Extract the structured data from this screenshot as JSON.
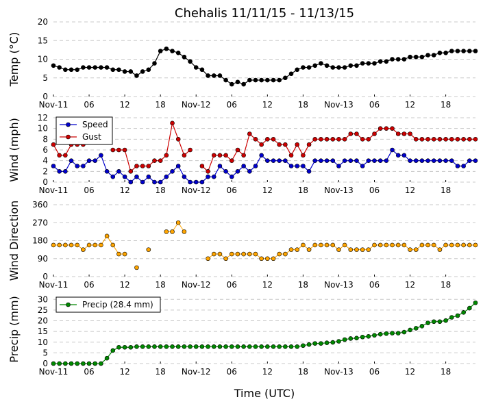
{
  "title": "Chehalis 11/11/15 - 11/13/15",
  "xlabel": "Time (UTC)",
  "x_ticks": [
    "Nov-11",
    "06",
    "12",
    "18",
    "Nov-12",
    "06",
    "12",
    "18",
    "Nov-13",
    "06",
    "12",
    "18"
  ],
  "chart_data": [
    {
      "type": "line",
      "ylabel": "Temp (°C)",
      "ylim": [
        0,
        20
      ],
      "yticks": [
        0,
        5,
        10,
        15,
        20
      ],
      "x_hours_from": "Nov-11 00 UTC",
      "grid": "horizontal dashed",
      "series": [
        {
          "color": "#000000",
          "x": [
            0,
            1,
            2,
            3,
            4,
            5,
            6,
            7,
            8,
            9,
            10,
            11,
            12,
            13,
            14,
            15,
            16,
            17,
            18,
            19,
            20,
            21,
            22,
            23,
            24,
            25,
            26,
            27,
            28,
            29,
            30,
            31,
            32,
            33,
            34,
            35,
            36,
            37,
            38,
            39,
            40,
            41,
            42,
            43,
            44,
            45,
            46,
            47,
            48,
            49,
            50,
            51,
            52,
            53,
            54,
            55,
            56,
            57,
            58,
            59,
            60,
            61,
            62,
            63,
            64,
            65,
            66,
            67,
            68,
            69,
            70,
            71
          ],
          "values": [
            8.3,
            7.8,
            7.2,
            7.2,
            7.2,
            7.8,
            7.8,
            7.8,
            7.8,
            7.8,
            7.2,
            7.2,
            6.7,
            6.7,
            5.6,
            6.7,
            7.2,
            8.9,
            12.2,
            12.8,
            12.2,
            11.7,
            10.6,
            9.4,
            7.8,
            7.2,
            5.6,
            5.6,
            5.6,
            4.4,
            3.3,
            3.9,
            3.3,
            4.4,
            4.4,
            4.4,
            4.4,
            4.4,
            4.4,
            5.0,
            6.1,
            7.2,
            7.8,
            7.8,
            8.3,
            8.9,
            8.3,
            7.8,
            7.8,
            7.8,
            8.3,
            8.3,
            8.9,
            8.9,
            8.9,
            9.4,
            9.4,
            10.0,
            10.0,
            10.0,
            10.6,
            10.6,
            10.6,
            11.1,
            11.1,
            11.7,
            11.7,
            12.2,
            12.2,
            12.2,
            12.2,
            12.2
          ]
        }
      ]
    },
    {
      "type": "line",
      "ylabel": "Wind (mph)",
      "ylim": [
        0,
        12
      ],
      "yticks": [
        0,
        2,
        4,
        6,
        8,
        10,
        12
      ],
      "legend": "upper-left",
      "grid": "horizontal dashed",
      "series": [
        {
          "name": "Speed",
          "color": "#0000cc",
          "x": [
            0,
            1,
            2,
            3,
            4,
            5,
            6,
            7,
            8,
            9,
            10,
            11,
            12,
            13,
            14,
            15,
            16,
            17,
            18,
            19,
            20,
            21,
            22,
            23,
            24,
            25,
            26,
            27,
            28,
            29,
            30,
            31,
            32,
            33,
            34,
            35,
            36,
            37,
            38,
            39,
            40,
            41,
            42,
            43,
            44,
            45,
            46,
            47,
            48,
            49,
            50,
            51,
            52,
            53,
            54,
            55,
            56,
            57,
            58,
            59,
            60,
            61,
            62,
            63,
            64,
            65,
            66,
            67,
            68,
            69,
            70,
            71
          ],
          "values": [
            3,
            2,
            2,
            4,
            3,
            3,
            4,
            4,
            5,
            2,
            1,
            2,
            1,
            0,
            1,
            0,
            1,
            0,
            0,
            1,
            2,
            3,
            1,
            0,
            0,
            0,
            1,
            1,
            3,
            2,
            1,
            2,
            3,
            2,
            3,
            5,
            4,
            4,
            4,
            4,
            3,
            3,
            3,
            2,
            4,
            4,
            4,
            4,
            3,
            4,
            4,
            4,
            3,
            4,
            4,
            4,
            4,
            6,
            5,
            5,
            4,
            4,
            4,
            4,
            4,
            4,
            4,
            4,
            3,
            3,
            4,
            4
          ]
        },
        {
          "name": "Gust",
          "color": "#cc0000",
          "x": [
            0,
            1,
            2,
            3,
            4,
            5,
            10,
            11,
            12,
            13,
            14,
            15,
            16,
            17,
            18,
            19,
            20,
            21,
            22,
            23,
            25,
            26,
            27,
            28,
            29,
            30,
            31,
            32,
            33,
            34,
            35,
            36,
            37,
            38,
            39,
            40,
            41,
            42,
            43,
            44,
            45,
            46,
            47,
            48,
            49,
            50,
            51,
            52,
            53,
            54,
            55,
            56,
            57,
            58,
            59,
            60,
            61,
            62,
            63,
            64,
            65,
            66,
            67,
            68,
            69,
            70,
            71
          ],
          "values": [
            7,
            5,
            5,
            7,
            7,
            7,
            6,
            6,
            6,
            2,
            3,
            3,
            3,
            4,
            4,
            5,
            11,
            8,
            5,
            6,
            3,
            2,
            5,
            5,
            5,
            4,
            6,
            5,
            9,
            8,
            7,
            8,
            8,
            7,
            7,
            5,
            7,
            5,
            7,
            8,
            8,
            8,
            8,
            8,
            8,
            9,
            9,
            8,
            8,
            9,
            10,
            10,
            10,
            9,
            9,
            9,
            8,
            8,
            8,
            8,
            8,
            8,
            8,
            8,
            8,
            8,
            8
          ]
        }
      ]
    },
    {
      "type": "scatter",
      "ylabel": "Wind Direction",
      "ylim": [
        0,
        360
      ],
      "yticks": [
        0,
        90,
        180,
        270,
        360
      ],
      "grid": "horizontal dashed",
      "series": [
        {
          "color": "#ffa500",
          "x": [
            0,
            1,
            2,
            3,
            4,
            5,
            6,
            7,
            8,
            9,
            10,
            11,
            12,
            14,
            16,
            19,
            20,
            21,
            22,
            26,
            27,
            28,
            29,
            30,
            31,
            32,
            33,
            34,
            35,
            36,
            37,
            38,
            39,
            40,
            41,
            42,
            43,
            44,
            45,
            46,
            47,
            48,
            49,
            50,
            51,
            52,
            53,
            54,
            55,
            56,
            57,
            58,
            59,
            60,
            61,
            62,
            63,
            64,
            65,
            66,
            67,
            68,
            69,
            70,
            71
          ],
          "values": [
            158,
            158,
            158,
            158,
            158,
            135,
            158,
            158,
            158,
            203,
            158,
            113,
            113,
            45,
            135,
            225,
            225,
            270,
            225,
            90,
            113,
            113,
            90,
            113,
            113,
            113,
            113,
            113,
            90,
            90,
            90,
            113,
            113,
            135,
            135,
            158,
            135,
            158,
            158,
            158,
            158,
            135,
            158,
            135,
            135,
            135,
            135,
            158,
            158,
            158,
            158,
            158,
            158,
            135,
            135,
            158,
            158,
            158,
            135,
            158,
            158,
            158,
            158,
            158,
            158
          ]
        }
      ]
    },
    {
      "type": "line",
      "ylabel": "Precip (mm)",
      "ylim": [
        0,
        32
      ],
      "yticks": [
        0,
        5,
        10,
        15,
        20,
        25,
        30
      ],
      "legend": "upper-left",
      "grid": "horizontal dashed",
      "series": [
        {
          "name": "Precip (28.4 mm)",
          "color": "#008800",
          "x": [
            0,
            1,
            2,
            3,
            4,
            5,
            6,
            7,
            8,
            9,
            10,
            11,
            12,
            13,
            14,
            15,
            16,
            17,
            18,
            19,
            20,
            21,
            22,
            23,
            24,
            25,
            26,
            27,
            28,
            29,
            30,
            31,
            32,
            33,
            34,
            35,
            36,
            37,
            38,
            39,
            40,
            41,
            42,
            43,
            44,
            45,
            46,
            47,
            48,
            49,
            50,
            51,
            52,
            53,
            54,
            55,
            56,
            57,
            58,
            59,
            60,
            61,
            62,
            63,
            64,
            65,
            66,
            67,
            68,
            69,
            70,
            71
          ],
          "values": [
            0,
            0,
            0,
            0,
            0,
            0,
            0,
            0,
            0,
            2.5,
            6.1,
            7.6,
            7.6,
            7.6,
            7.9,
            7.9,
            7.9,
            7.9,
            7.9,
            7.9,
            7.9,
            7.9,
            7.9,
            7.9,
            7.9,
            7.9,
            7.9,
            7.9,
            7.9,
            7.9,
            7.9,
            7.9,
            7.9,
            7.9,
            7.9,
            7.9,
            7.9,
            7.9,
            7.9,
            7.9,
            7.9,
            7.9,
            8.4,
            8.9,
            9.4,
            9.4,
            9.7,
            9.9,
            10.4,
            11.2,
            11.7,
            11.9,
            12.4,
            12.7,
            13.2,
            13.7,
            14.0,
            14.2,
            14.2,
            14.7,
            15.7,
            16.5,
            17.5,
            19.0,
            19.6,
            19.6,
            20.1,
            21.6,
            22.4,
            23.9,
            25.9,
            28.4
          ]
        }
      ]
    }
  ]
}
